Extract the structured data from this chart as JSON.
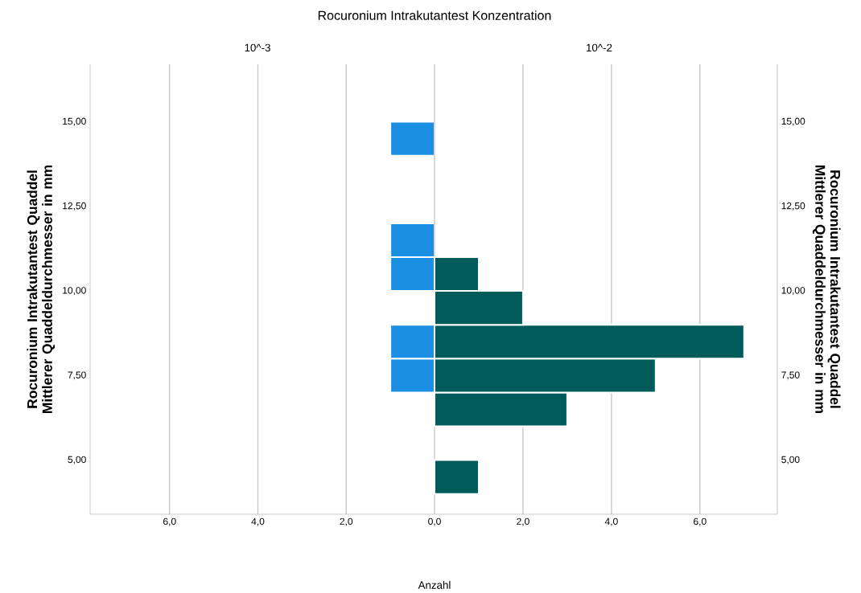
{
  "chart_data": [
    {
      "type": "histogram",
      "orientation": "horizontal",
      "title": "Rocuronium Intrakutantest Konzentration",
      "subtitle": "10^-3",
      "xlabel": "Anzahl",
      "ylabel": "Rocuronium Intrakutantest Quaddel Mittlerer Quaddeldurchmesser in mm",
      "bins": [
        4,
        5,
        6,
        7,
        8,
        9,
        10,
        11,
        12,
        13,
        14,
        15
      ],
      "values": [
        0,
        0,
        0,
        1,
        1,
        0,
        1,
        1,
        0,
        0,
        1
      ],
      "color": "#1a8fe3",
      "xlim": [
        7.8,
        0
      ],
      "xticks": [
        {
          "value": 2,
          "label": "2,0"
        },
        {
          "value": 4,
          "label": "4,0"
        },
        {
          "value": 6,
          "label": "6,0"
        }
      ],
      "ylim": [
        3.4,
        16.7
      ],
      "yticks": [
        {
          "value": 5,
          "label": "5,00"
        },
        {
          "value": 7.5,
          "label": "7,50"
        },
        {
          "value": 10,
          "label": "10,00"
        },
        {
          "value": 12.5,
          "label": "12,50"
        },
        {
          "value": 15,
          "label": "15,00"
        }
      ],
      "grid": "x"
    },
    {
      "type": "histogram",
      "orientation": "horizontal",
      "title": "10^-2",
      "y2label": "Rocuronium Intrakutantest Quaddel Mittlerer Quaddeldurchmesser in mm",
      "bins": [
        4,
        5,
        6,
        7,
        8,
        9,
        10,
        11,
        12,
        13,
        14,
        15
      ],
      "values": [
        1,
        0,
        3,
        5,
        7,
        2,
        1,
        0,
        0,
        0,
        0
      ],
      "color": "#005b5b",
      "xlim": [
        0,
        7.75
      ],
      "xticks": [
        {
          "value": 0,
          "label": "0,0"
        },
        {
          "value": 2,
          "label": "2,0"
        },
        {
          "value": 4,
          "label": "4,0"
        },
        {
          "value": 6,
          "label": "6,0"
        }
      ],
      "ylim": [
        3.4,
        16.7
      ],
      "yticks": [
        {
          "value": 5,
          "label": "5,00"
        },
        {
          "value": 7.5,
          "label": "7,50"
        },
        {
          "value": 10,
          "label": "10,00"
        },
        {
          "value": 12.5,
          "label": "12,50"
        },
        {
          "value": 15,
          "label": "15,00"
        }
      ],
      "grid": "x"
    }
  ]
}
